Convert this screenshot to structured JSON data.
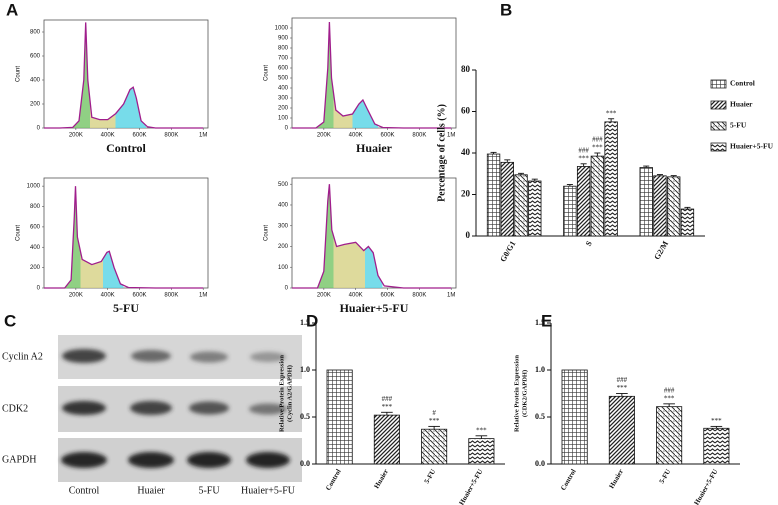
{
  "panel_labels": [
    "A",
    "B",
    "C",
    "D",
    "E"
  ],
  "blot": {
    "rows": [
      "Cyclin A2",
      "CDK2",
      "GAPDH"
    ],
    "lanes": [
      "Control",
      "Huaier",
      "5-FU",
      "Huaier+5-FU"
    ]
  },
  "chart_data": [
    {
      "type": "line",
      "ylabel": "Count",
      "xlabel": "Control",
      "color": "#a01e8c",
      "x": [
        0,
        100000,
        180000,
        220000,
        250000,
        262000,
        275000,
        300000,
        350000,
        400000,
        450000,
        500000,
        540000,
        560000,
        580000,
        610000,
        650000,
        700000,
        1000000
      ],
      "values": [
        0,
        0,
        5,
        60,
        400,
        880,
        400,
        90,
        70,
        70,
        120,
        200,
        320,
        340,
        250,
        60,
        10,
        0,
        0
      ],
      "xlim": [
        0,
        1030000
      ],
      "ylim": [
        0,
        900
      ],
      "xticks": [
        {
          "value": 200000,
          "label": "200K"
        },
        {
          "value": 400000,
          "label": "400K"
        },
        {
          "value": 600000,
          "label": "600K"
        },
        {
          "value": 800000,
          "label": "800K"
        },
        {
          "value": 1000000,
          "label": "1M"
        }
      ],
      "yticks": [
        0,
        200,
        400,
        600,
        800
      ]
    },
    {
      "type": "line",
      "ylabel": "Count",
      "xlabel": "Huaier",
      "color": "#a01e8c",
      "x": [
        0,
        150000,
        200000,
        225000,
        235000,
        248000,
        275000,
        320000,
        380000,
        420000,
        445000,
        470000,
        520000,
        570000,
        700000,
        1000000
      ],
      "values": [
        0,
        0,
        60,
        600,
        1060,
        500,
        180,
        120,
        140,
        240,
        280,
        200,
        40,
        5,
        0,
        0
      ],
      "xlim": [
        0,
        1030000
      ],
      "ylim": [
        0,
        1100
      ],
      "xticks": [
        {
          "value": 200000,
          "label": "200K"
        },
        {
          "value": 400000,
          "label": "400K"
        },
        {
          "value": 600000,
          "label": "600K"
        },
        {
          "value": 800000,
          "label": "800K"
        },
        {
          "value": 1000000,
          "label": "1M"
        }
      ],
      "yticks": [
        0,
        100,
        200,
        300,
        400,
        500,
        600,
        700,
        800,
        900,
        1000
      ]
    },
    {
      "type": "line",
      "ylabel": "Count",
      "xlabel": "5-FU",
      "color": "#a01e8c",
      "x": [
        0,
        130000,
        170000,
        190000,
        198000,
        210000,
        240000,
        300000,
        360000,
        395000,
        410000,
        440000,
        480000,
        530000,
        700000,
        1000000
      ],
      "values": [
        0,
        0,
        80,
        700,
        1000,
        500,
        280,
        230,
        260,
        350,
        360,
        200,
        40,
        5,
        0,
        0
      ],
      "xlim": [
        0,
        1030000
      ],
      "ylim": [
        0,
        1080
      ],
      "xticks": [
        {
          "value": 200000,
          "label": "200K"
        },
        {
          "value": 400000,
          "label": "400K"
        },
        {
          "value": 600000,
          "label": "600K"
        },
        {
          "value": 800000,
          "label": "800K"
        },
        {
          "value": 1000000,
          "label": "1M"
        }
      ],
      "yticks": [
        0,
        200,
        400,
        600,
        800,
        1000
      ]
    },
    {
      "type": "line",
      "ylabel": "Count",
      "xlabel": "Huaier+5-FU",
      "color": "#a01e8c",
      "x": [
        0,
        160000,
        200000,
        225000,
        235000,
        250000,
        280000,
        330000,
        400000,
        450000,
        480000,
        510000,
        540000,
        580000,
        700000,
        1000000
      ],
      "values": [
        0,
        0,
        80,
        420,
        500,
        280,
        200,
        210,
        220,
        180,
        200,
        170,
        60,
        10,
        0,
        0
      ],
      "xlim": [
        0,
        1030000
      ],
      "ylim": [
        0,
        530
      ],
      "xticks": [
        {
          "value": 200000,
          "label": "200K"
        },
        {
          "value": 400000,
          "label": "400K"
        },
        {
          "value": 600000,
          "label": "600K"
        },
        {
          "value": 800000,
          "label": "800K"
        },
        {
          "value": 1000000,
          "label": "1M"
        }
      ],
      "yticks": [
        0,
        100,
        200,
        300,
        400,
        500
      ]
    },
    {
      "type": "bar",
      "ylabel": "Percentage of cells (%)",
      "legend": "right",
      "categories": [
        "G0/G1",
        "S",
        "G2/M"
      ],
      "series": [
        {
          "name": "Control",
          "color": "#222222",
          "values": [
            39.5,
            24,
            33
          ],
          "errors": [
            0.8,
            0.8,
            0.7
          ]
        },
        {
          "name": "Huaier",
          "color": "#222222",
          "values": [
            35.5,
            33.5,
            29
          ],
          "errors": [
            1.2,
            1.3,
            0.6
          ],
          "marks": [
            null,
            [
              "###",
              "***"
            ],
            null
          ]
        },
        {
          "name": "5-FU",
          "color": "#222222",
          "values": [
            29.5,
            38.5,
            28.5
          ],
          "errors": [
            0.7,
            1.5,
            0.6
          ],
          "marks": [
            null,
            [
              "###",
              "***"
            ],
            null
          ]
        },
        {
          "name": "Huaier+5-FU",
          "color": "#222222",
          "values": [
            26.5,
            55,
            13
          ],
          "errors": [
            0.9,
            1.5,
            0.8
          ],
          "marks": [
            null,
            [
              "***"
            ],
            null
          ]
        }
      ],
      "ylim": [
        0,
        80
      ],
      "yticks": [
        0,
        20,
        40,
        60,
        80
      ]
    },
    {
      "type": "bar",
      "ylabel": [
        "Relative Protein Expression",
        "(Cyclin A2/GAPDH)"
      ],
      "categories": [
        "Control",
        "Huaier",
        "5-FU",
        "Huaier+5-FU"
      ],
      "values": [
        1,
        0.52,
        0.37,
        0.27
      ],
      "errors": [
        null,
        0.03,
        0.03,
        0.03
      ],
      "marks": [
        null,
        [
          "###",
          "***"
        ],
        [
          "#",
          "***"
        ],
        [
          "***"
        ]
      ],
      "ylim": [
        0,
        1.5
      ],
      "yticks": [
        {
          "value": 0,
          "label": "0.0"
        },
        {
          "value": 0.5,
          "label": "0.5"
        },
        {
          "value": 1,
          "label": "1.0"
        },
        {
          "value": 1.5,
          "label": "1.5"
        }
      ]
    },
    {
      "type": "bar",
      "ylabel": [
        "Relative Protein Expression",
        "(CDK2/GAPDH)"
      ],
      "categories": [
        "Control",
        "Huaier",
        "5-FU",
        "Huaier+5-FU"
      ],
      "values": [
        1,
        0.72,
        0.61,
        0.38
      ],
      "errors": [
        null,
        0.03,
        0.03,
        0.02
      ],
      "marks": [
        null,
        [
          "###",
          "***"
        ],
        [
          "###",
          "***"
        ],
        [
          "***"
        ]
      ],
      "ylim": [
        0,
        1.5
      ],
      "yticks": [
        {
          "value": 0,
          "label": "0.0"
        },
        {
          "value": 0.5,
          "label": "0.5"
        },
        {
          "value": 1,
          "label": "1.0"
        },
        {
          "value": 1.5,
          "label": "1.5"
        }
      ]
    }
  ]
}
